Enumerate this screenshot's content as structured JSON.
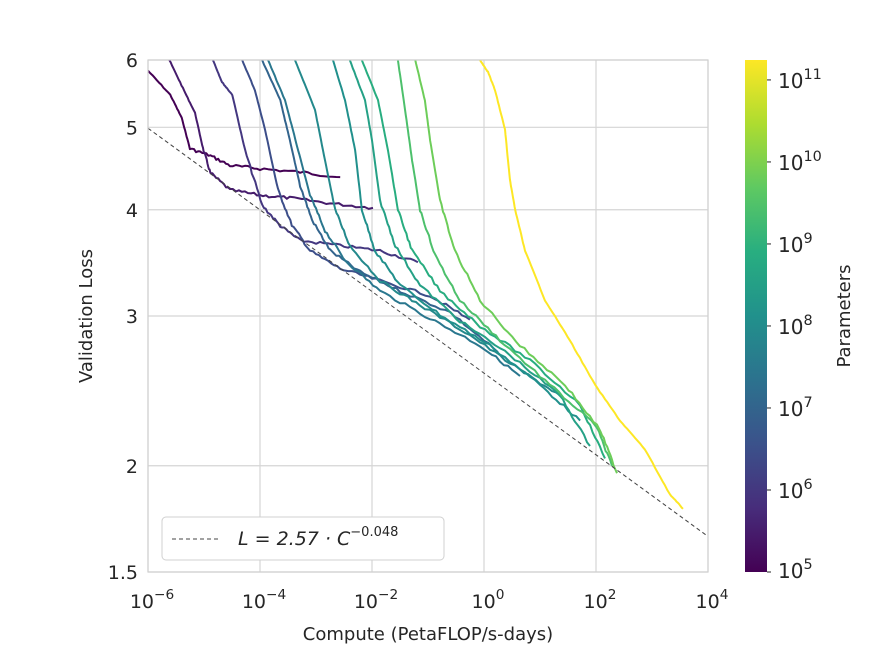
{
  "chart_data": {
    "type": "line",
    "xlabel": "Compute (PetaFLOP/s-days)",
    "ylabel": "Validation Loss",
    "x_scale": "log",
    "y_scale": "log",
    "xlim": [
      1e-06,
      10000.0
    ],
    "ylim": [
      1.5,
      6
    ],
    "x_ticks": [
      {
        "base": "10",
        "exp": "−6"
      },
      {
        "base": "10",
        "exp": "−4"
      },
      {
        "base": "10",
        "exp": "−2"
      },
      {
        "base": "10",
        "exp": "0"
      },
      {
        "base": "10",
        "exp": "2"
      },
      {
        "base": "10",
        "exp": "4"
      }
    ],
    "x_tick_values": [
      1e-06,
      0.0001,
      0.01,
      1,
      100.0,
      10000.0
    ],
    "y_ticks": [
      "1.5",
      "2",
      "3",
      "4",
      "5",
      "6"
    ],
    "y_tick_values": [
      1.5,
      2,
      3,
      4,
      5,
      6
    ],
    "grid": true,
    "legend": {
      "placement": "lower-left",
      "entry_prefix": "L = 2.57 · C",
      "entry_exp": "−0.048"
    },
    "fit": {
      "a": 2.57,
      "b": -0.048,
      "style": "dashed",
      "color": "#444444"
    },
    "colorbar": {
      "label": "Parameters",
      "scale": "log",
      "range": [
        100000.0,
        175000000000.0
      ],
      "colormap": "viridis",
      "ticks": [
        {
          "base": "10",
          "exp": "5"
        },
        {
          "base": "10",
          "exp": "6"
        },
        {
          "base": "10",
          "exp": "7"
        },
        {
          "base": "10",
          "exp": "8"
        },
        {
          "base": "10",
          "exp": "9"
        },
        {
          "base": "10",
          "exp": "10"
        },
        {
          "base": "10",
          "exp": "11"
        }
      ],
      "tick_values": [
        100000.0,
        1000000.0,
        10000000.0,
        100000000.0,
        1000000000.0,
        10000000000.0,
        100000000000.0
      ]
    },
    "series": [
      {
        "params": 100000.0,
        "points": [
          [
            1e-06,
            5.83
          ],
          [
            2.5e-06,
            5.46
          ],
          [
            4e-06,
            5.13
          ],
          [
            5.6e-06,
            4.72
          ],
          [
            1.3e-05,
            4.63
          ],
          [
            2.9e-05,
            4.51
          ],
          [
            0.0001,
            4.47
          ],
          [
            0.00052,
            4.43
          ],
          [
            0.0027,
            4.37
          ]
        ]
      },
      {
        "params": 300000.0,
        "points": [
          [
            2.4e-06,
            6.0
          ],
          [
            4.2e-06,
            5.56
          ],
          [
            6.9e-06,
            5.2
          ],
          [
            9.6e-06,
            4.72
          ],
          [
            1.3e-05,
            4.42
          ],
          [
            2.9e-05,
            4.22
          ],
          [
            0.0001,
            4.16
          ],
          [
            0.00034,
            4.13
          ],
          [
            0.0018,
            4.07
          ],
          [
            0.0104,
            4.02
          ]
        ]
      },
      {
        "params": 1000000.0,
        "points": [
          [
            1.45e-05,
            6.0
          ],
          [
            2.1e-05,
            5.65
          ],
          [
            3.2e-05,
            5.46
          ],
          [
            5.4e-05,
            4.7
          ],
          [
            0.000109,
            4.05
          ],
          [
            0.00023,
            3.83
          ],
          [
            0.00052,
            3.68
          ],
          [
            0.0027,
            3.63
          ],
          [
            0.0139,
            3.58
          ],
          [
            0.066,
            3.47
          ]
        ]
      },
      {
        "params": 3000000.0,
        "points": [
          [
            4.8e-05,
            6.0
          ],
          [
            8.1e-05,
            5.53
          ],
          [
            0.000123,
            4.97
          ],
          [
            0.00021,
            4.22
          ],
          [
            0.00037,
            3.84
          ],
          [
            0.00078,
            3.58
          ],
          [
            0.0027,
            3.41
          ],
          [
            0.0139,
            3.3
          ],
          [
            0.109,
            3.17
          ],
          [
            0.56,
            2.97
          ]
        ]
      },
      {
        "params": 10000000.0,
        "points": [
          [
            0.000109,
            6.0
          ],
          [
            0.00023,
            5.38
          ],
          [
            0.00034,
            4.83
          ],
          [
            0.00052,
            4.27
          ],
          [
            0.00085,
            3.89
          ],
          [
            0.0018,
            3.58
          ],
          [
            0.0061,
            3.38
          ],
          [
            0.032,
            3.21
          ],
          [
            0.25,
            3.03
          ],
          [
            1.78,
            2.72
          ]
        ]
      },
      {
        "params": 30000000.0,
        "points": [
          [
            0.000139,
            6.0
          ],
          [
            0.00028,
            5.38
          ],
          [
            0.00048,
            4.7
          ],
          [
            0.00078,
            4.16
          ],
          [
            0.00145,
            3.78
          ],
          [
            0.0033,
            3.49
          ],
          [
            0.0139,
            3.21
          ],
          [
            0.109,
            2.98
          ],
          [
            0.85,
            2.77
          ],
          [
            4.4,
            2.55
          ]
        ]
      },
      {
        "params": 85000000.0,
        "points": [
          [
            0.00042,
            6.0
          ],
          [
            0.00096,
            5.24
          ],
          [
            0.00145,
            4.57
          ],
          [
            0.0022,
            4.0
          ],
          [
            0.004,
            3.63
          ],
          [
            0.0139,
            3.3
          ],
          [
            0.072,
            3.09
          ],
          [
            0.56,
            2.85
          ],
          [
            4.4,
            2.59
          ],
          [
            22.8,
            2.42
          ]
        ]
      },
      {
        "params": 125000000.0,
        "points": [
          [
            0.002,
            6.0
          ],
          [
            0.0033,
            5.38
          ],
          [
            0.005,
            4.7
          ],
          [
            0.0066,
            4.0
          ],
          [
            0.0113,
            3.58
          ],
          [
            0.032,
            3.26
          ],
          [
            0.164,
            3.01
          ],
          [
            1.28,
            2.77
          ],
          [
            10,
            2.49
          ],
          [
            52,
            2.26
          ]
        ]
      },
      {
        "params": 350000000.0,
        "points": [
          [
            0.004,
            6.0
          ],
          [
            0.0075,
            5.38
          ],
          [
            0.01,
            4.83
          ],
          [
            0.0139,
            4.1
          ],
          [
            0.026,
            3.63
          ],
          [
            0.072,
            3.26
          ],
          [
            0.37,
            2.96
          ],
          [
            2.9,
            2.7
          ],
          [
            22.8,
            2.42
          ],
          [
            78,
            2.11
          ]
        ]
      },
      {
        "params": 760000000.0,
        "points": [
          [
            0.0066,
            6.0
          ],
          [
            0.0128,
            5.38
          ],
          [
            0.0193,
            4.7
          ],
          [
            0.029,
            4.0
          ],
          [
            0.052,
            3.58
          ],
          [
            0.164,
            3.21
          ],
          [
            0.85,
            2.92
          ],
          [
            6.6,
            2.66
          ],
          [
            52,
            2.36
          ],
          [
            145,
            2.04
          ]
        ]
      },
      {
        "params": 2700000000.0,
        "points": [
          [
            0.029,
            6.0
          ],
          [
            0.039,
            5.24
          ],
          [
            0.052,
            4.57
          ],
          [
            0.072,
            4.0
          ],
          [
            0.133,
            3.54
          ],
          [
            0.37,
            3.13
          ],
          [
            1.93,
            2.81
          ],
          [
            15,
            2.49
          ],
          [
            100,
            2.23
          ],
          [
            193,
            2.0
          ]
        ]
      },
      {
        "params": 6700000000.0,
        "points": [
          [
            0.059,
            6.0
          ],
          [
            0.088,
            5.38
          ],
          [
            0.109,
            4.83
          ],
          [
            0.164,
            4.1
          ],
          [
            0.3,
            3.58
          ],
          [
            0.85,
            3.13
          ],
          [
            4.4,
            2.77
          ],
          [
            28,
            2.49
          ],
          [
            120,
            2.2
          ],
          [
            237,
            1.96
          ]
        ]
      },
      {
        "params": 175000000000.0,
        "points": [
          [
            0.85,
            6.0
          ],
          [
            1.18,
            5.81
          ],
          [
            1.57,
            5.53
          ],
          [
            2.37,
            4.97
          ],
          [
            2.9,
            4.34
          ],
          [
            3.6,
            4.0
          ],
          [
            5.4,
            3.58
          ],
          [
            12.3,
            3.13
          ],
          [
            34,
            2.81
          ],
          [
            96,
            2.49
          ],
          [
            268,
            2.26
          ],
          [
            750,
            2.09
          ],
          [
            2100,
            1.85
          ],
          [
            3580,
            1.78
          ]
        ]
      }
    ]
  }
}
